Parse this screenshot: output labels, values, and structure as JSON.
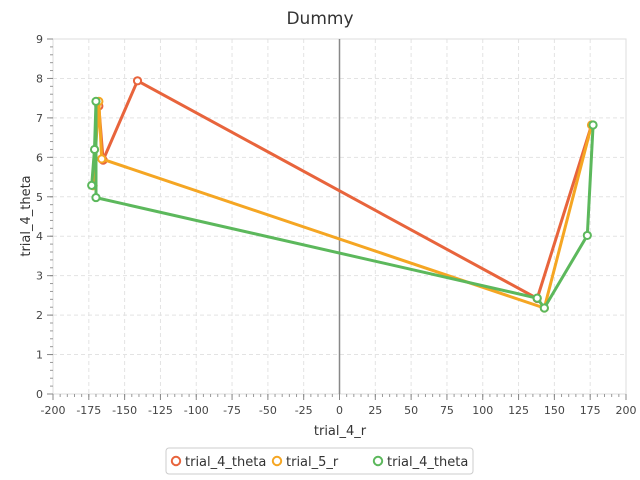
{
  "chart_data": {
    "type": "line",
    "title": "Dummy",
    "xlabel": "trial_4_r",
    "ylabel": "trial_4_theta",
    "xlim": [
      -200,
      200
    ],
    "ylim": [
      0,
      9
    ],
    "xticks": [
      -200,
      -175,
      -150,
      -125,
      -100,
      -75,
      -50,
      -25,
      0,
      25,
      50,
      75,
      100,
      125,
      150,
      175,
      200
    ],
    "yticks": [
      0,
      1,
      2,
      3,
      4,
      5,
      6,
      7,
      8,
      9
    ],
    "grid": true,
    "zero_line": "x=0",
    "legend_position": "bottom",
    "series": [
      {
        "name": "trial_4_theta",
        "color": "#e8643c",
        "points": [
          {
            "x": -168,
            "y": 7.3
          },
          {
            "x": -165,
            "y": 5.93
          },
          {
            "x": -141,
            "y": 7.94
          },
          {
            "x": 138,
            "y": 2.42
          },
          {
            "x": 176,
            "y": 6.82
          }
        ]
      },
      {
        "name": "trial_5_r",
        "color": "#f5a623",
        "points": [
          {
            "x": -172,
            "y": 5.28
          },
          {
            "x": -168,
            "y": 7.42
          },
          {
            "x": -166,
            "y": 5.96
          },
          {
            "x": 143,
            "y": 2.18
          },
          {
            "x": 176,
            "y": 6.82
          }
        ]
      },
      {
        "name": "trial_4_theta",
        "color": "#5cb85c",
        "points": [
          {
            "x": -173,
            "y": 5.29
          },
          {
            "x": -171,
            "y": 6.2
          },
          {
            "x": -170,
            "y": 7.42
          },
          {
            "x": -170,
            "y": 4.98
          },
          {
            "x": 138,
            "y": 2.43
          },
          {
            "x": 143,
            "y": 2.18
          },
          {
            "x": 173,
            "y": 4.02
          },
          {
            "x": 177,
            "y": 6.82
          }
        ]
      }
    ]
  }
}
